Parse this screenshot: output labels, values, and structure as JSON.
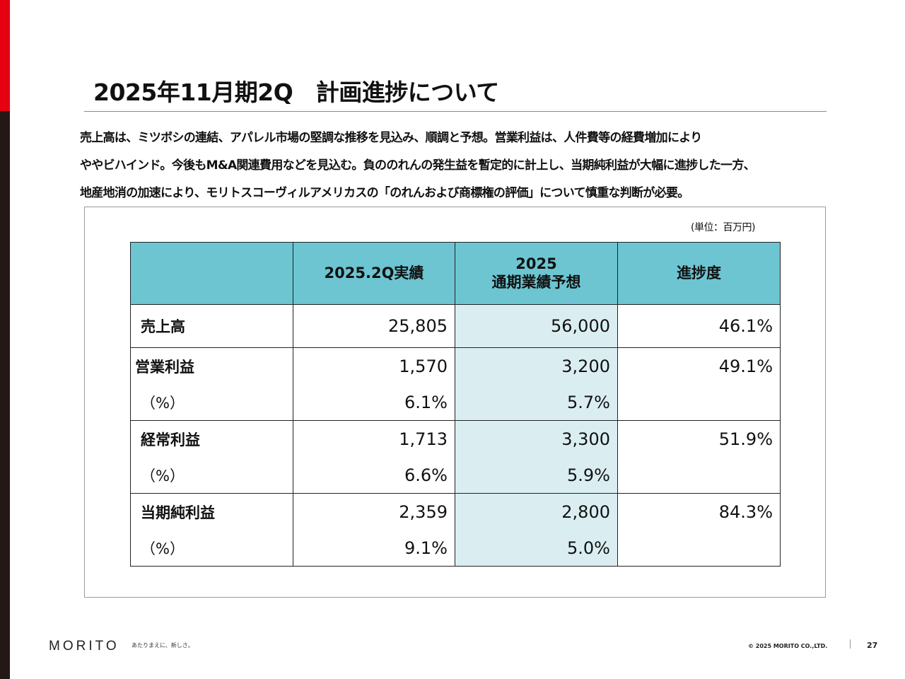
{
  "slide": {
    "title": "2025年11月期2Q　計画進捗について",
    "description": [
      "売上高は、ミツボシの連結、アパレル市場の堅調な推移を見込み、順調と予想。営業利益は、人件費等の経費増加により",
      "ややビハインド。今後もM&A関連費用などを見込む。負ののれんの発生益を暫定的に計上し、当期純利益が大幅に進捗した一方、",
      "地産地消の加速により、モリトスコーヴィルアメリカスの「のれんおよび商標権の評価」について慎重な判断が必要。"
    ],
    "unit_note": "(単位：百万円)"
  },
  "table": {
    "headers": [
      "",
      "2025.2Q実績",
      "2025",
      "通期業績予想",
      "進捗度"
    ],
    "header_fill_color": "#6cc5d1",
    "forecast_column_fill_color": "#daeef2",
    "rows": [
      {
        "label": "売上高",
        "actual": "25,805",
        "forecast": "56,000",
        "progress": "46.1%"
      },
      {
        "label": "営業利益",
        "actual": "1,570",
        "forecast": "3,200",
        "progress": "49.1%"
      },
      {
        "label": "（%）",
        "actual": "6.1%",
        "forecast": "5.7%",
        "progress": ""
      },
      {
        "label": "経常利益",
        "actual": "1,713",
        "forecast": "3,300",
        "progress": "51.9%"
      },
      {
        "label": "（%）",
        "actual": "6.6%",
        "forecast": "5.9%",
        "progress": ""
      },
      {
        "label": "当期純利益",
        "actual": "2,359",
        "forecast": "2,800",
        "progress": "84.3%"
      },
      {
        "label": "（%）",
        "actual": "9.1%",
        "forecast": "5.0%",
        "progress": ""
      }
    ]
  },
  "footer": {
    "logo": "MORITO",
    "tagline": "あたりまえに、新しさ。",
    "copyright": "© 2025 MORITO CO.,LTD.",
    "page_number": "27"
  },
  "colors": {
    "accent_red": "#e60012",
    "side_bar_dark": "#231815"
  }
}
